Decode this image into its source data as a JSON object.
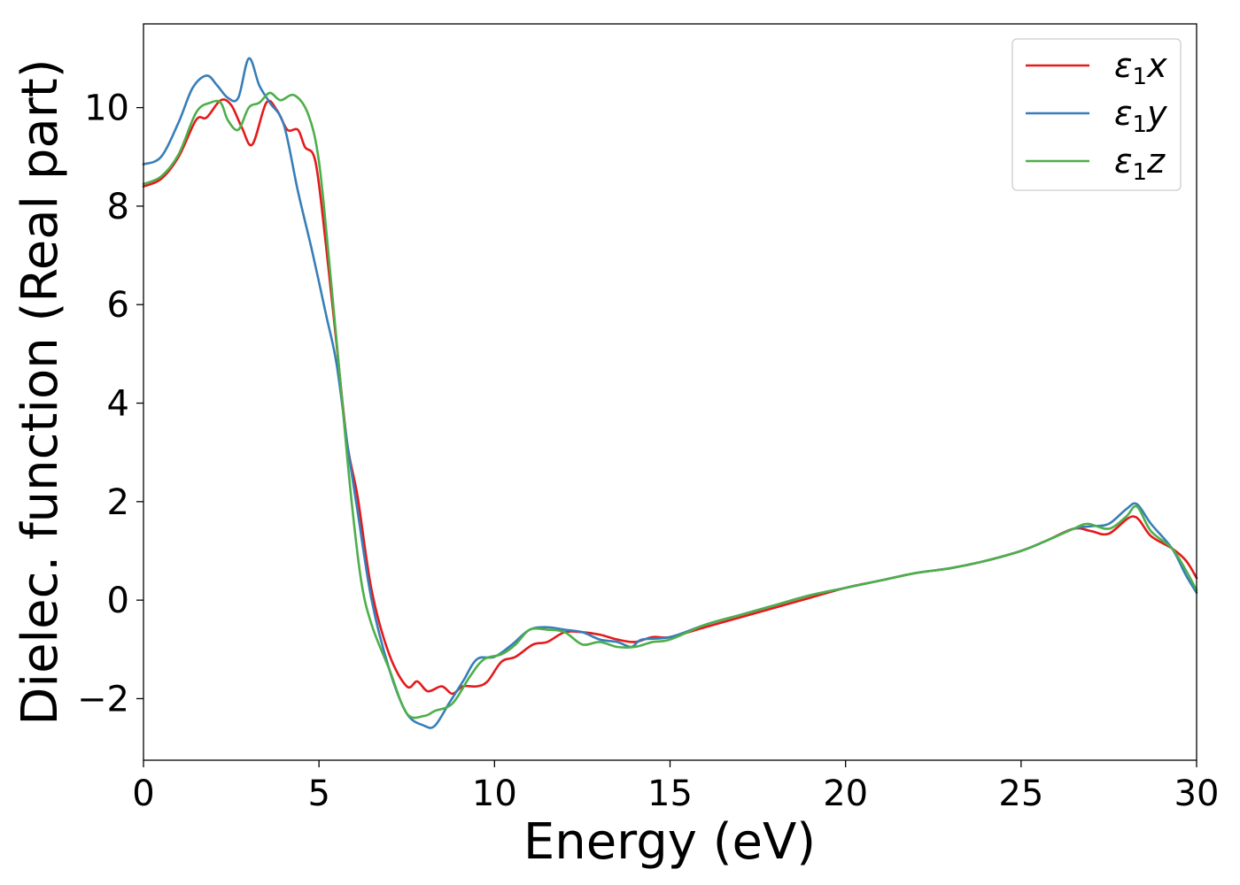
{
  "chart_data": {
    "type": "line",
    "xlabel": "Energy (eV)",
    "ylabel": "Dielec. function (Real part)",
    "xlim": [
      0,
      30
    ],
    "ylim": [
      -3.25,
      11.7
    ],
    "x_ticks": [
      0,
      5,
      10,
      15,
      20,
      25,
      30
    ],
    "y_ticks": [
      -2,
      0,
      2,
      4,
      6,
      8,
      10
    ],
    "grid": false,
    "legend_position": "top-right",
    "series": [
      {
        "name": "ε1x",
        "legend": {
          "symbol": "ε",
          "sub": "1",
          "axis": "x"
        },
        "color": "#e41a1c",
        "points": [
          [
            0,
            8.4
          ],
          [
            0.5,
            8.55
          ],
          [
            1,
            9.0
          ],
          [
            1.5,
            9.75
          ],
          [
            1.8,
            9.8
          ],
          [
            2.2,
            10.15
          ],
          [
            2.5,
            10.05
          ],
          [
            2.8,
            9.6
          ],
          [
            3.1,
            9.25
          ],
          [
            3.5,
            10.1
          ],
          [
            3.8,
            9.95
          ],
          [
            4.1,
            9.55
          ],
          [
            4.4,
            9.55
          ],
          [
            4.6,
            9.2
          ],
          [
            4.9,
            8.9
          ],
          [
            5.2,
            7.2
          ],
          [
            5.5,
            5.2
          ],
          [
            5.8,
            3.2
          ],
          [
            6.1,
            2.1
          ],
          [
            6.5,
            0.2
          ],
          [
            7,
            -1.1
          ],
          [
            7.5,
            -1.75
          ],
          [
            7.8,
            -1.65
          ],
          [
            8.1,
            -1.85
          ],
          [
            8.5,
            -1.75
          ],
          [
            8.8,
            -1.9
          ],
          [
            9.1,
            -1.75
          ],
          [
            9.5,
            -1.75
          ],
          [
            9.8,
            -1.65
          ],
          [
            10.2,
            -1.25
          ],
          [
            10.6,
            -1.15
          ],
          [
            11.1,
            -0.9
          ],
          [
            11.5,
            -0.85
          ],
          [
            12.0,
            -0.65
          ],
          [
            12.5,
            -0.65
          ],
          [
            13.0,
            -0.7
          ],
          [
            13.5,
            -0.8
          ],
          [
            14.0,
            -0.85
          ],
          [
            14.5,
            -0.75
          ],
          [
            15.0,
            -0.75
          ],
          [
            16,
            -0.55
          ],
          [
            17,
            -0.35
          ],
          [
            18,
            -0.15
          ],
          [
            19,
            0.05
          ],
          [
            20,
            0.25
          ],
          [
            21,
            0.4
          ],
          [
            22,
            0.55
          ],
          [
            23,
            0.65
          ],
          [
            24,
            0.8
          ],
          [
            25,
            1.0
          ],
          [
            25.7,
            1.2
          ],
          [
            26.5,
            1.45
          ],
          [
            27,
            1.4
          ],
          [
            27.5,
            1.35
          ],
          [
            28.2,
            1.7
          ],
          [
            28.7,
            1.3
          ],
          [
            29.3,
            1.05
          ],
          [
            29.7,
            0.8
          ],
          [
            30,
            0.45
          ]
        ]
      },
      {
        "name": "ε1y",
        "legend": {
          "symbol": "ε",
          "sub": "1",
          "axis": "y"
        },
        "color": "#377eb8",
        "points": [
          [
            0,
            8.85
          ],
          [
            0.5,
            9.0
          ],
          [
            1,
            9.7
          ],
          [
            1.4,
            10.4
          ],
          [
            1.8,
            10.65
          ],
          [
            2.1,
            10.45
          ],
          [
            2.4,
            10.2
          ],
          [
            2.7,
            10.2
          ],
          [
            3.0,
            11.0
          ],
          [
            3.3,
            10.45
          ],
          [
            3.6,
            10.1
          ],
          [
            4.0,
            9.65
          ],
          [
            4.4,
            8.3
          ],
          [
            4.8,
            7.1
          ],
          [
            5.2,
            5.8
          ],
          [
            5.5,
            4.8
          ],
          [
            5.8,
            3.2
          ],
          [
            6.1,
            1.8
          ],
          [
            6.5,
            0.0
          ],
          [
            7,
            -1.4
          ],
          [
            7.5,
            -2.3
          ],
          [
            8.0,
            -2.55
          ],
          [
            8.3,
            -2.55
          ],
          [
            8.7,
            -2.1
          ],
          [
            9.1,
            -1.65
          ],
          [
            9.5,
            -1.2
          ],
          [
            10.0,
            -1.15
          ],
          [
            10.5,
            -0.9
          ],
          [
            11.0,
            -0.6
          ],
          [
            11.5,
            -0.55
          ],
          [
            12.0,
            -0.6
          ],
          [
            12.5,
            -0.65
          ],
          [
            13.0,
            -0.8
          ],
          [
            13.5,
            -0.85
          ],
          [
            13.9,
            -0.95
          ],
          [
            14.2,
            -0.8
          ],
          [
            15.0,
            -0.75
          ],
          [
            16,
            -0.5
          ],
          [
            17,
            -0.3
          ],
          [
            18,
            -0.1
          ],
          [
            19,
            0.1
          ],
          [
            20,
            0.25
          ],
          [
            21,
            0.4
          ],
          [
            22,
            0.55
          ],
          [
            23,
            0.65
          ],
          [
            24,
            0.8
          ],
          [
            25,
            1.0
          ],
          [
            25.7,
            1.2
          ],
          [
            26.5,
            1.45
          ],
          [
            27,
            1.5
          ],
          [
            27.5,
            1.55
          ],
          [
            28.0,
            1.85
          ],
          [
            28.3,
            1.95
          ],
          [
            28.7,
            1.55
          ],
          [
            29.3,
            1.05
          ],
          [
            29.7,
            0.5
          ],
          [
            30,
            0.15
          ]
        ]
      },
      {
        "name": "ε1z",
        "legend": {
          "symbol": "ε",
          "sub": "1",
          "axis": "z"
        },
        "color": "#4daf4a",
        "points": [
          [
            0,
            8.45
          ],
          [
            0.5,
            8.6
          ],
          [
            1,
            9.05
          ],
          [
            1.5,
            9.9
          ],
          [
            1.9,
            10.1
          ],
          [
            2.2,
            10.1
          ],
          [
            2.4,
            9.75
          ],
          [
            2.7,
            9.55
          ],
          [
            3.0,
            10.0
          ],
          [
            3.3,
            10.1
          ],
          [
            3.6,
            10.3
          ],
          [
            3.9,
            10.15
          ],
          [
            4.3,
            10.25
          ],
          [
            4.7,
            9.85
          ],
          [
            5.0,
            8.9
          ],
          [
            5.3,
            6.8
          ],
          [
            5.6,
            4.5
          ],
          [
            5.9,
            2.2
          ],
          [
            6.2,
            0.4
          ],
          [
            6.5,
            -0.5
          ],
          [
            7.0,
            -1.4
          ],
          [
            7.5,
            -2.3
          ],
          [
            8.0,
            -2.35
          ],
          [
            8.3,
            -2.25
          ],
          [
            8.8,
            -2.1
          ],
          [
            9.3,
            -1.55
          ],
          [
            9.7,
            -1.2
          ],
          [
            10.2,
            -1.1
          ],
          [
            10.6,
            -0.9
          ],
          [
            11.0,
            -0.6
          ],
          [
            11.5,
            -0.6
          ],
          [
            12.0,
            -0.65
          ],
          [
            12.5,
            -0.9
          ],
          [
            13.0,
            -0.85
          ],
          [
            13.5,
            -0.95
          ],
          [
            14.0,
            -0.95
          ],
          [
            14.5,
            -0.85
          ],
          [
            15.0,
            -0.8
          ],
          [
            16,
            -0.5
          ],
          [
            17,
            -0.3
          ],
          [
            18,
            -0.1
          ],
          [
            19,
            0.1
          ],
          [
            20,
            0.25
          ],
          [
            21,
            0.4
          ],
          [
            22,
            0.55
          ],
          [
            23,
            0.65
          ],
          [
            24,
            0.8
          ],
          [
            25,
            1.0
          ],
          [
            25.7,
            1.2
          ],
          [
            26.5,
            1.45
          ],
          [
            26.9,
            1.55
          ],
          [
            27.5,
            1.45
          ],
          [
            28.0,
            1.7
          ],
          [
            28.3,
            1.9
          ],
          [
            28.7,
            1.4
          ],
          [
            29.3,
            1.05
          ],
          [
            29.7,
            0.6
          ],
          [
            30,
            0.2
          ]
        ]
      }
    ]
  }
}
